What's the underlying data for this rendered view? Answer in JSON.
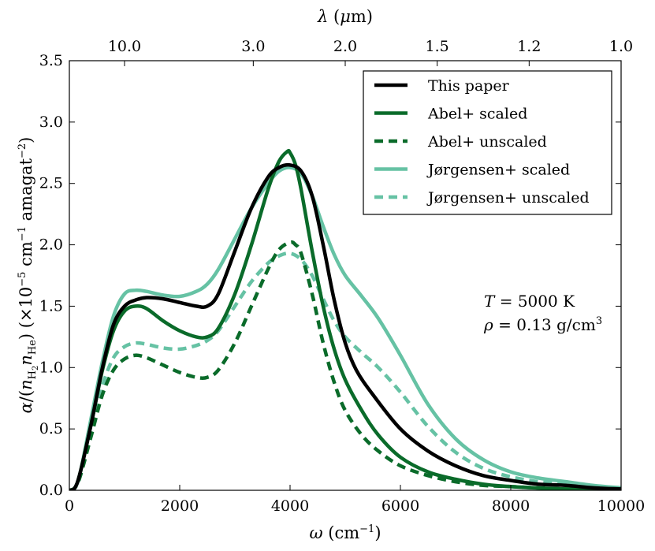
{
  "chart_data": {
    "type": "line",
    "title": "",
    "xlabel": "ω (cm⁻¹)",
    "ylabel": "α/(n_H₂ n_He) (×10⁻⁵ cm⁻¹ amagat⁻²)",
    "top_xlabel": "λ (μm)",
    "xlim": [
      0,
      10000
    ],
    "ylim": [
      0,
      3.5
    ],
    "x_ticks": [
      0,
      2000,
      4000,
      6000,
      8000,
      10000
    ],
    "x_tick_labels": [
      "0",
      "2000",
      "4000",
      "6000",
      "8000",
      "10000"
    ],
    "y_ticks": [
      0,
      0.5,
      1.0,
      1.5,
      2.0,
      2.5,
      3.0,
      3.5
    ],
    "y_tick_labels": [
      "0.0",
      "0.5",
      "1.0",
      "1.5",
      "2.0",
      "2.5",
      "3.0",
      "3.5"
    ],
    "top_ticks_wavelength": [
      10.0,
      3.0,
      2.0,
      1.5,
      1.2,
      1.0
    ],
    "top_tick_labels": [
      "10.0",
      "3.0",
      "2.0",
      "1.5",
      "1.2",
      "1.0"
    ],
    "legend_position": "top-right",
    "annotations": [
      "T = 5000 K",
      "ρ = 0.13 g/cm³"
    ],
    "series": [
      {
        "name": "This paper",
        "color": "#000000",
        "style": "solid",
        "x": [
          0,
          100,
          200,
          400,
          600,
          800,
          1000,
          1200,
          1400,
          1700,
          2000,
          2300,
          2500,
          2700,
          3000,
          3300,
          3600,
          3800,
          4000,
          4200,
          4400,
          4600,
          4800,
          5000,
          5200,
          5500,
          6000,
          6500,
          7000,
          7500,
          8000,
          8500,
          9000,
          9500,
          10000
        ],
        "values": [
          0,
          0.02,
          0.15,
          0.55,
          1.0,
          1.35,
          1.5,
          1.55,
          1.57,
          1.56,
          1.53,
          1.5,
          1.5,
          1.6,
          1.95,
          2.3,
          2.55,
          2.63,
          2.65,
          2.6,
          2.4,
          2.0,
          1.55,
          1.2,
          0.98,
          0.78,
          0.5,
          0.32,
          0.2,
          0.12,
          0.08,
          0.05,
          0.04,
          0.02,
          0.01
        ]
      },
      {
        "name": "Abel+ scaled",
        "color": "#0a6b2a",
        "style": "solid",
        "x": [
          0,
          100,
          200,
          400,
          600,
          800,
          1000,
          1200,
          1400,
          1700,
          2000,
          2300,
          2500,
          2700,
          3000,
          3300,
          3600,
          3800,
          3950,
          4000,
          4100,
          4200,
          4400,
          4600,
          4800,
          5000,
          5300,
          5600,
          6000,
          6500,
          7000,
          7500,
          8000,
          9000,
          10000
        ],
        "values": [
          0,
          0.02,
          0.15,
          0.55,
          0.98,
          1.3,
          1.46,
          1.5,
          1.48,
          1.38,
          1.3,
          1.25,
          1.25,
          1.32,
          1.6,
          2.0,
          2.45,
          2.68,
          2.76,
          2.75,
          2.65,
          2.45,
          1.95,
          1.5,
          1.15,
          0.9,
          0.65,
          0.45,
          0.27,
          0.15,
          0.09,
          0.05,
          0.03,
          0.01,
          0.0
        ]
      },
      {
        "name": "Abel+ unscaled",
        "color": "#0a6b2a",
        "style": "dashed",
        "x": [
          0,
          100,
          200,
          400,
          600,
          800,
          1000,
          1200,
          1400,
          1700,
          2000,
          2300,
          2500,
          2700,
          3000,
          3300,
          3600,
          3800,
          4000,
          4100,
          4200,
          4400,
          4600,
          4800,
          5000,
          5300,
          5600,
          6000,
          6500,
          7000,
          7500,
          8000,
          9000,
          10000
        ],
        "values": [
          0,
          0.02,
          0.12,
          0.45,
          0.78,
          0.98,
          1.07,
          1.1,
          1.08,
          1.02,
          0.96,
          0.92,
          0.92,
          0.98,
          1.2,
          1.5,
          1.8,
          1.96,
          2.02,
          2.0,
          1.93,
          1.6,
          1.2,
          0.88,
          0.65,
          0.45,
          0.32,
          0.2,
          0.12,
          0.07,
          0.04,
          0.03,
          0.01,
          0.0
        ]
      },
      {
        "name": "Jørgensen+ scaled",
        "color": "#66c2a4",
        "style": "solid",
        "x": [
          0,
          100,
          200,
          400,
          600,
          800,
          1000,
          1200,
          1400,
          1700,
          2000,
          2300,
          2500,
          2700,
          3000,
          3300,
          3600,
          3800,
          4000,
          4200,
          4400,
          4600,
          4800,
          5000,
          5300,
          5600,
          6000,
          6500,
          7000,
          7500,
          8000,
          8500,
          9000,
          9500,
          10000
        ],
        "values": [
          0,
          0.02,
          0.15,
          0.6,
          1.05,
          1.42,
          1.6,
          1.63,
          1.62,
          1.59,
          1.58,
          1.62,
          1.68,
          1.8,
          2.05,
          2.3,
          2.5,
          2.6,
          2.63,
          2.58,
          2.4,
          2.15,
          1.92,
          1.75,
          1.58,
          1.4,
          1.1,
          0.7,
          0.42,
          0.25,
          0.15,
          0.1,
          0.07,
          0.04,
          0.02
        ]
      },
      {
        "name": "Jørgensen+ unscaled",
        "color": "#66c2a4",
        "style": "dashed",
        "x": [
          0,
          100,
          200,
          400,
          600,
          800,
          1000,
          1200,
          1400,
          1700,
          2000,
          2300,
          2500,
          2700,
          3000,
          3300,
          3600,
          3800,
          4000,
          4200,
          4400,
          4600,
          4800,
          5000,
          5300,
          5600,
          6000,
          6500,
          7000,
          7500,
          8000,
          8500,
          9000,
          9500,
          10000
        ],
        "values": [
          0,
          0.02,
          0.12,
          0.48,
          0.85,
          1.08,
          1.17,
          1.2,
          1.19,
          1.16,
          1.15,
          1.18,
          1.22,
          1.3,
          1.5,
          1.7,
          1.85,
          1.91,
          1.93,
          1.88,
          1.75,
          1.56,
          1.38,
          1.25,
          1.12,
          1.0,
          0.8,
          0.52,
          0.31,
          0.18,
          0.11,
          0.07,
          0.05,
          0.03,
          0.01
        ]
      }
    ]
  }
}
